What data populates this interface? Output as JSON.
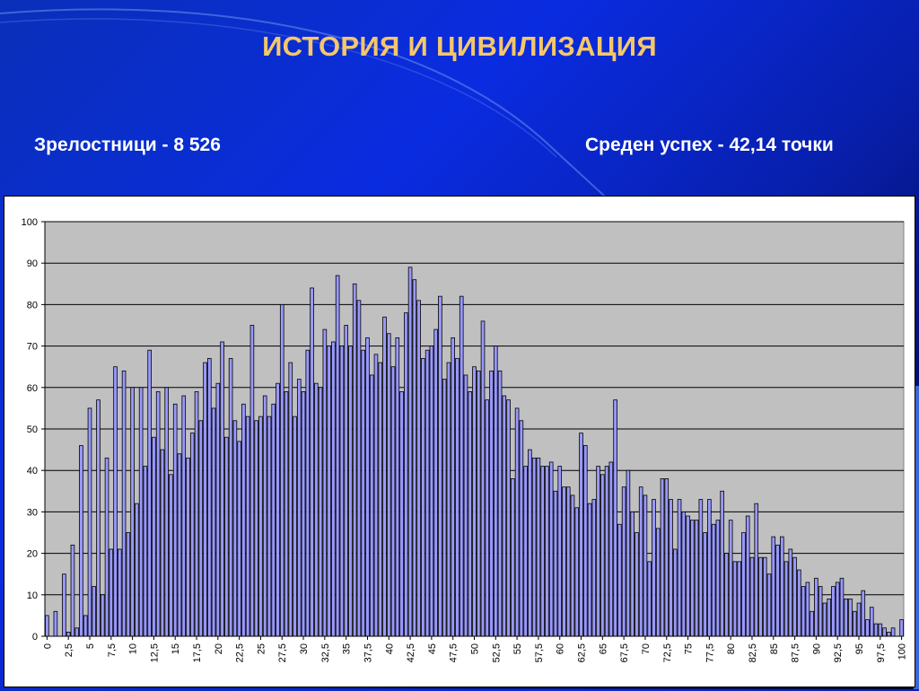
{
  "slide": {
    "title": "ИСТОРИЯ И ЦИВИЛИЗАЦИЯ",
    "graduates_text": "Зрелостници - 8 526",
    "average_text": "Среден успех - 42,14 точки"
  },
  "colors": {
    "title": "#f5c76a",
    "bar_fill": "#9999ff",
    "plot_bg": "#c0c0c0"
  },
  "chart_data": {
    "type": "bar",
    "ylim": [
      0,
      100
    ],
    "yticks": [
      0,
      10,
      20,
      30,
      40,
      50,
      60,
      70,
      80,
      90,
      100
    ],
    "xtick_labels": [
      "0",
      "2,5",
      "5",
      "7,5",
      "10",
      "12,5",
      "15",
      "17,5",
      "20",
      "22,5",
      "25",
      "27,5",
      "30",
      "32,5",
      "35",
      "37,5",
      "40",
      "42,5",
      "45",
      "47,5",
      "50",
      "52,5",
      "55",
      "57,5",
      "60",
      "62,5",
      "65",
      "67,5",
      "70",
      "72,5",
      "75",
      "77,5",
      "80",
      "82,5",
      "85",
      "87,5",
      "90",
      "92,5",
      "95",
      "97,5",
      "100"
    ],
    "x_start": 0,
    "x_step": 0.5,
    "grid": true,
    "legend": "none",
    "values": [
      5,
      0,
      6,
      0,
      15,
      1,
      22,
      2,
      46,
      5,
      55,
      12,
      57,
      10,
      43,
      21,
      65,
      21,
      64,
      25,
      60,
      32,
      60,
      41,
      69,
      48,
      59,
      45,
      60,
      39,
      56,
      44,
      58,
      43,
      49,
      59,
      52,
      66,
      67,
      55,
      61,
      71,
      48,
      67,
      52,
      47,
      56,
      53,
      75,
      52,
      53,
      58,
      53,
      56,
      61,
      80,
      59,
      66,
      53,
      62,
      59,
      69,
      84,
      61,
      60,
      74,
      70,
      71,
      87,
      70,
      75,
      70,
      85,
      81,
      69,
      72,
      63,
      68,
      66,
      77,
      73,
      65,
      72,
      59,
      78,
      89,
      86,
      81,
      67,
      69,
      70,
      74,
      82,
      62,
      66,
      72,
      67,
      82,
      63,
      59,
      65,
      64,
      76,
      57,
      64,
      70,
      64,
      58,
      57,
      38,
      55,
      52,
      41,
      45,
      43,
      43,
      41,
      41,
      42,
      35,
      41,
      36,
      36,
      34,
      31,
      49,
      46,
      32,
      33,
      41,
      39,
      41,
      42,
      57,
      27,
      36,
      40,
      30,
      25,
      36,
      34,
      18,
      33,
      26,
      38,
      38,
      33,
      21,
      33,
      30,
      29,
      28,
      28,
      33,
      25,
      33,
      27,
      28,
      35,
      20,
      28,
      18,
      18,
      25,
      29,
      19,
      32,
      19,
      19,
      15,
      24,
      22,
      24,
      18,
      21,
      19,
      16,
      12,
      13,
      6,
      14,
      12,
      8,
      9,
      12,
      13,
      14,
      9,
      9,
      6,
      8,
      11,
      4,
      7,
      3,
      3,
      2,
      1,
      2,
      0,
      4
    ]
  }
}
